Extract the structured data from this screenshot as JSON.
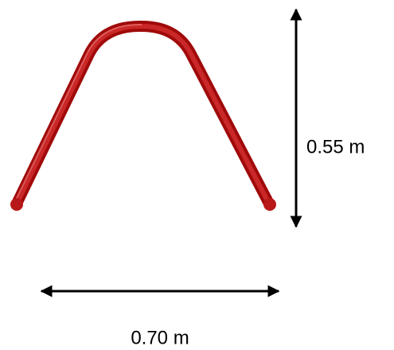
{
  "dimensions": {
    "height": "0.55 m",
    "width": "0.70 m"
  }
}
